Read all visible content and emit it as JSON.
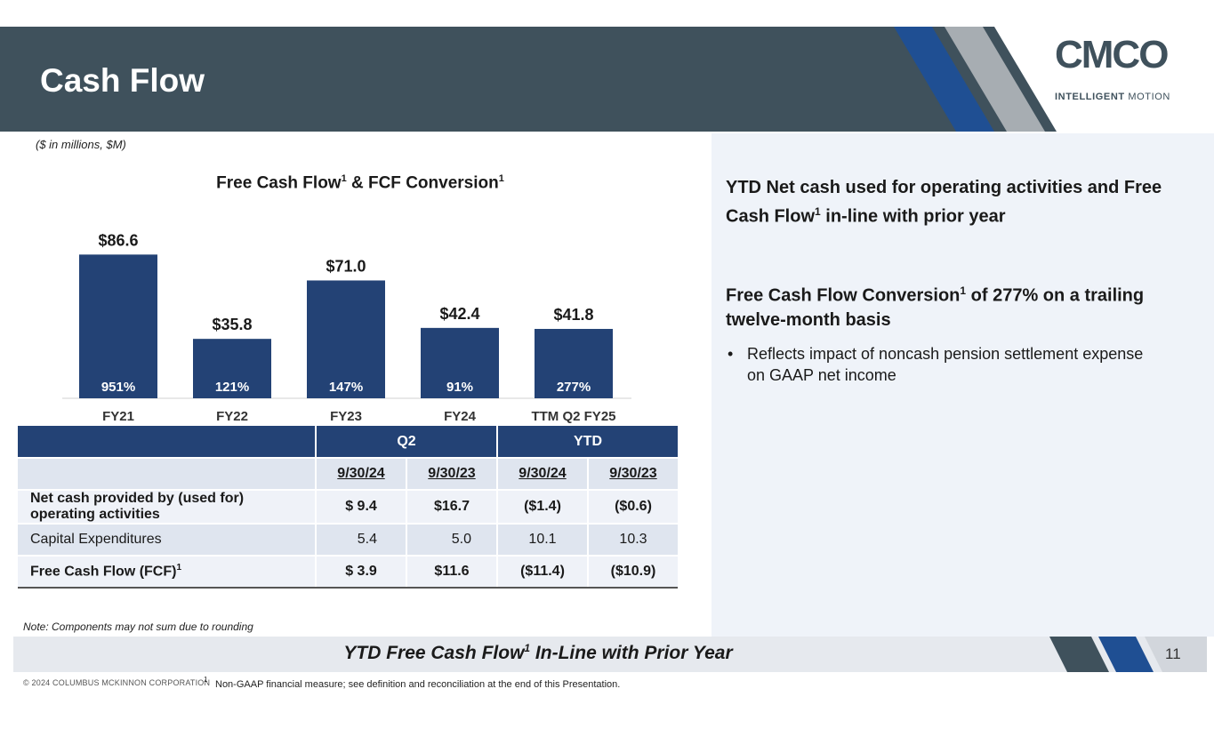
{
  "header": {
    "title": "Cash Flow",
    "logo_text": "CMCO",
    "logo_sub_bold": "INTELLIGENT",
    "logo_sub_light": "MOTION"
  },
  "units_note": "($ in millions, $M)",
  "chart_title": {
    "text": "Free Cash Flow",
    "sup1": "1",
    "mid": " & FCF Conversion",
    "sup2": "1"
  },
  "chart_data": {
    "type": "bar",
    "title": "Free Cash Flow1 & FCF Conversion1",
    "categories": [
      "FY21",
      "FY22",
      "FY23",
      "FY24",
      "TTM Q2 FY25"
    ],
    "values": [
      86.6,
      35.8,
      71.0,
      42.4,
      41.8
    ],
    "value_labels": [
      "$86.6",
      "$35.8",
      "$71.0",
      "$42.4",
      "$41.8"
    ],
    "conversion_labels": [
      "951%",
      "121%",
      "147%",
      "91%",
      "277%"
    ],
    "xlabel": "",
    "ylabel": "",
    "ylim": [
      0,
      90
    ],
    "bar_color": "#234275",
    "grid": false
  },
  "right_panel": {
    "point1_a": "YTD Net cash used for operating activities and Free Cash Flow",
    "point1_sup": "1",
    "point1_b": " in-line with prior year",
    "point2_a": "Free Cash Flow Conversion",
    "point2_sup": "1",
    "point2_b": " of 277% on a trailing twelve-month basis",
    "bullet_mark": "•",
    "bullet": "Reflects impact of noncash pension settlement expense on GAAP net income"
  },
  "table": {
    "group_headers": [
      "Q2",
      "YTD"
    ],
    "date_headers": [
      "9/30/24",
      "9/30/23",
      "9/30/24",
      "9/30/23"
    ],
    "rows": [
      {
        "label": "Net cash provided by (used for) operating activities",
        "values": [
          "$ 9.4",
          "$16.7",
          "($1.4)",
          "($0.6)"
        ]
      },
      {
        "label": "Capital Expenditures",
        "values": [
          "5.4",
          "5.0",
          "10.1",
          "10.3"
        ]
      },
      {
        "label": "Free Cash Flow (FCF)",
        "label_sup": "1",
        "values": [
          "$ 3.9",
          "$11.6",
          "($11.4)",
          "($10.9)"
        ]
      }
    ]
  },
  "rounding_note": "Note: Components may not sum due to rounding",
  "bottom_banner": {
    "text_a": "YTD Free Cash Flow",
    "sup": "1",
    "text_b": " In-Line with Prior Year"
  },
  "page_number": "11",
  "copyright": "© 2024 COLUMBUS MCKINNON CORPORATION",
  "footnote": {
    "mark": "1",
    "text": "Non-GAAP financial measure; see definition and reconciliation at the end of this Presentation."
  },
  "colors": {
    "header_bg": "#3f515c",
    "accent_blue": "#234275",
    "stripe_blue": "#1f4f93",
    "stripe_grey": "#a7adb2"
  }
}
